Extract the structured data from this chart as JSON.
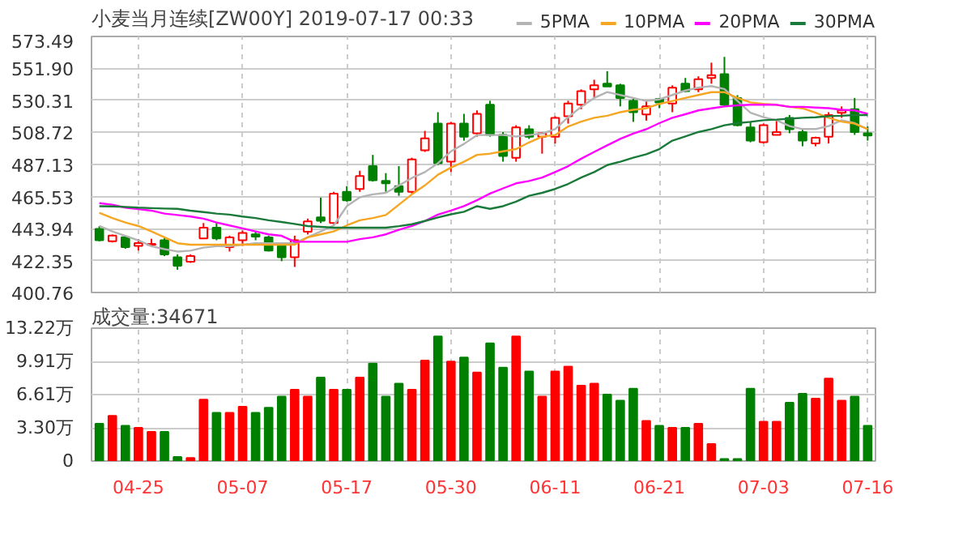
{
  "chart_data": [
    {
      "type": "candlestick",
      "title": "小麦当月连续[ZW00Y] 2019-07-17 00:33",
      "categories": [
        null,
        null,
        null,
        null,
        null,
        null,
        null,
        null,
        null,
        null,
        null,
        null,
        null,
        null,
        null,
        null,
        null,
        null,
        null,
        null,
        null,
        null,
        null,
        null,
        null,
        null,
        null,
        null,
        null,
        null,
        null,
        null,
        null,
        null,
        null,
        null,
        null,
        null,
        null,
        null,
        null,
        null,
        null,
        null,
        null,
        null,
        null,
        null,
        null,
        null,
        null,
        null,
        null,
        null,
        null,
        null,
        null,
        null,
        null,
        null
      ],
      "ohlc": [
        [
          443.7,
          445.6,
          435.3,
          436.0
        ],
        [
          435.3,
          439.9,
          434.5,
          439.1
        ],
        [
          438.0,
          439.1,
          430.3,
          431.4
        ],
        [
          432.2,
          436.8,
          429.1,
          434.1
        ],
        [
          432.9,
          437.0,
          432.0,
          433.6
        ],
        [
          436.0,
          437.9,
          425.3,
          426.5
        ],
        [
          424.5,
          426.5,
          416.1,
          418.8
        ],
        [
          421.5,
          426.5,
          420.7,
          425.3
        ],
        [
          437.2,
          447.6,
          436.8,
          444.5
        ],
        [
          444.5,
          447.6,
          436.0,
          437.2
        ],
        [
          431.4,
          439.1,
          428.4,
          437.9
        ],
        [
          436.0,
          442.6,
          432.2,
          441.0
        ],
        [
          440.0,
          441.8,
          436.0,
          438.5
        ],
        [
          437.9,
          439.1,
          428.4,
          429.1
        ],
        [
          432.2,
          434.1,
          421.9,
          424.5
        ],
        [
          424.5,
          439.1,
          418.0,
          436.0
        ],
        [
          441.8,
          450.6,
          439.9,
          448.7
        ],
        [
          451.4,
          464.8,
          447.6,
          449.1
        ],
        [
          447.6,
          468.7,
          446.8,
          467.5
        ],
        [
          468.7,
          472.5,
          462.1,
          462.9
        ],
        [
          470.6,
          482.9,
          468.7,
          479.4
        ],
        [
          486.0,
          493.6,
          475.6,
          476.4
        ],
        [
          476.0,
          481.3,
          468.7,
          474.4
        ],
        [
          472.5,
          486.0,
          466.0,
          468.7
        ],
        [
          468.7,
          491.7,
          467.5,
          490.6
        ],
        [
          496.7,
          509.8,
          495.6,
          504.7
        ],
        [
          514.7,
          522.4,
          486.7,
          487.9
        ],
        [
          489.0,
          515.9,
          482.1,
          514.7
        ],
        [
          514.7,
          521.3,
          503.2,
          505.9
        ],
        [
          508.2,
          523.6,
          505.9,
          521.3
        ],
        [
          527.4,
          530.1,
          505.9,
          507.1
        ],
        [
          507.1,
          509.0,
          489.0,
          492.9
        ],
        [
          491.7,
          513.6,
          489.0,
          512.1
        ],
        [
          510.9,
          513.6,
          504.4,
          505.9
        ],
        [
          505.9,
          509.0,
          494.4,
          508.2
        ],
        [
          505.9,
          519.7,
          501.3,
          518.6
        ],
        [
          519.7,
          530.1,
          514.7,
          528.2
        ],
        [
          527.4,
          537.8,
          524.4,
          536.6
        ],
        [
          537.8,
          544.3,
          532.0,
          540.5
        ],
        [
          541.6,
          550.1,
          539.7,
          539.7
        ],
        [
          540.5,
          541.6,
          526.3,
          532.0
        ],
        [
          530.1,
          532.0,
          515.9,
          522.4
        ],
        [
          520.9,
          530.1,
          516.7,
          526.3
        ],
        [
          531.3,
          532.0,
          525.1,
          529.0
        ],
        [
          528.2,
          540.5,
          522.4,
          538.9
        ],
        [
          541.6,
          545.5,
          535.9,
          536.6
        ],
        [
          537.8,
          546.6,
          535.9,
          544.7
        ],
        [
          545.5,
          555.8,
          541.6,
          547.4
        ],
        [
          548.1,
          559.7,
          526.3,
          527.4
        ],
        [
          532.0,
          533.9,
          512.8,
          513.6
        ],
        [
          512.1,
          515.9,
          502.1,
          503.2
        ],
        [
          502.1,
          514.7,
          501.3,
          513.6
        ],
        [
          507.1,
          516.7,
          507.1,
          509.0
        ],
        [
          518.6,
          520.5,
          508.2,
          510.9
        ],
        [
          509.0,
          510.9,
          499.4,
          503.2
        ],
        [
          501.3,
          505.9,
          499.4,
          505.1
        ],
        [
          505.9,
          522.4,
          501.3,
          520.5
        ],
        [
          522.0,
          526.3,
          518.6,
          523.6
        ],
        [
          524.4,
          532.0,
          507.1,
          509.0
        ],
        [
          508.2,
          512.8,
          503.2,
          506.7
        ]
      ],
      "colors": [
        "#008000",
        "#ff0000",
        "#008000",
        "#ff0000",
        "#ff0000",
        "#008000",
        "#008000",
        "#ff0000",
        "#ff0000",
        "#008000",
        "#ff0000",
        "#ff0000",
        "#008000",
        "#008000",
        "#008000",
        "#ff0000",
        "#ff0000",
        "#008000",
        "#ff0000",
        "#008000",
        "#ff0000",
        "#008000",
        "#008000",
        "#008000",
        "#ff0000",
        "#ff0000",
        "#008000",
        "#ff0000",
        "#008000",
        "#ff0000",
        "#008000",
        "#008000",
        "#ff0000",
        "#008000",
        "#ff0000",
        "#ff0000",
        "#ff0000",
        "#ff0000",
        "#ff0000",
        "#008000",
        "#008000",
        "#008000",
        "#ff0000",
        "#008000",
        "#ff0000",
        "#008000",
        "#ff0000",
        "#ff0000",
        "#008000",
        "#008000",
        "#008000",
        "#ff0000",
        "#ff0000",
        "#008000",
        "#008000",
        "#ff0000",
        "#ff0000",
        "#ff0000",
        "#008000",
        "#008000"
      ],
      "series": [
        {
          "name": "5PMA",
          "type": "line",
          "color": "#b4b4b4",
          "values": [
            445.6,
            442,
            439,
            436,
            432,
            430,
            428.4,
            429,
            431,
            432,
            432,
            433,
            434,
            434,
            434,
            434,
            438,
            442,
            446,
            459,
            465,
            467,
            468,
            473,
            478,
            482,
            488,
            496,
            501,
            507,
            507,
            507,
            506,
            507,
            508,
            511,
            519,
            526,
            532,
            536,
            534,
            532,
            530,
            531,
            534,
            537,
            539,
            540,
            538,
            530,
            522,
            519,
            517,
            513,
            511,
            511,
            513,
            517,
            515,
            511
          ]
        },
        {
          "name": "10PMA",
          "type": "line",
          "color": "#f5a623",
          "values": [
            454.5,
            451,
            448,
            445.6,
            442,
            438,
            434,
            433,
            433,
            433,
            433,
            433,
            433,
            433,
            433,
            433,
            438,
            440,
            442,
            446,
            449.5,
            451,
            453,
            460,
            467,
            473,
            480.2,
            485,
            489,
            493.6,
            494.4,
            496,
            497.5,
            502,
            505.9,
            507,
            512.8,
            516,
            518.6,
            520,
            522.4,
            524,
            525,
            528,
            530,
            532,
            534,
            535.9,
            535.9,
            532,
            529,
            528,
            527.4,
            526,
            525,
            522,
            518.6,
            516,
            514.7,
            510.9
          ]
        },
        {
          "name": "20PMA",
          "type": "line",
          "color": "#ff00ff",
          "values": [
            461,
            460,
            458,
            457,
            456,
            454,
            453,
            452,
            450.6,
            448,
            446,
            444,
            442,
            440,
            439,
            435,
            435,
            435,
            435,
            435,
            436.8,
            438,
            440,
            443,
            445.6,
            449,
            453.3,
            456,
            459,
            463,
            467.5,
            471,
            474.4,
            476,
            478.3,
            482,
            486,
            491,
            495.6,
            500,
            504.4,
            508,
            510.9,
            515,
            518.6,
            521,
            523.6,
            525,
            526.3,
            527,
            527.4,
            527.4,
            527.4,
            526,
            526,
            525.5,
            525.1,
            524,
            523.6,
            521.3
          ]
        },
        {
          "name": "30PMA",
          "type": "line",
          "color": "#1a7a3a",
          "values": [
            459,
            458.8,
            458.5,
            458,
            457.7,
            457.4,
            457.2,
            456,
            455,
            454,
            453.3,
            452,
            451,
            449.5,
            448.3,
            447,
            445.6,
            445,
            444.5,
            444.5,
            444.5,
            444.5,
            444.5,
            445.5,
            446.8,
            449,
            451.4,
            453.5,
            455.2,
            459,
            457.2,
            459,
            462,
            466,
            468,
            470.6,
            474,
            478.3,
            482,
            486.7,
            489,
            491.7,
            494,
            497.5,
            503.2,
            506,
            509,
            511,
            513.6,
            515,
            515.9,
            517,
            517.4,
            518,
            518.6,
            519,
            519.7,
            520,
            520.5,
            520.5
          ]
        }
      ],
      "ylim": [
        400.76,
        573.49
      ],
      "yticks": [
        400.76,
        422.35,
        443.94,
        465.53,
        487.13,
        508.72,
        530.31,
        {
          "value": 551.9,
          "label": "551.90"
        },
        573.49
      ],
      "grid": true,
      "legend": "top right",
      "tick_labels": "y"
    },
    {
      "type": "bar",
      "title": "成交量:34671",
      "categories": [
        null,
        null,
        null,
        "04-25",
        null,
        null,
        null,
        null,
        null,
        null,
        null,
        "05-07",
        null,
        null,
        null,
        null,
        null,
        null,
        null,
        "05-17",
        null,
        null,
        null,
        null,
        null,
        null,
        null,
        "05-30",
        null,
        null,
        null,
        null,
        null,
        null,
        null,
        "06-11",
        null,
        null,
        null,
        null,
        null,
        null,
        null,
        "06-21",
        null,
        null,
        null,
        null,
        null,
        null,
        null,
        "07-03",
        null,
        null,
        null,
        null,
        null,
        null,
        null,
        "07-16"
      ],
      "values": [
        3.7,
        4.5,
        3.5,
        3.3,
        2.9,
        2.9,
        0.4,
        0.3,
        6.1,
        4.8,
        4.8,
        5.4,
        4.8,
        5.3,
        6.4,
        7.1,
        6.4,
        8.3,
        7.1,
        7.1,
        8.3,
        9.7,
        6.4,
        7.7,
        7.1,
        10.0,
        12.4,
        9.9,
        10.3,
        8.8,
        11.7,
        9.3,
        12.4,
        8.9,
        6.4,
        8.9,
        9.4,
        7.5,
        7.7,
        6.6,
        6.0,
        7.2,
        4.0,
        3.5,
        3.3,
        3.3,
        3.7,
        1.7,
        0.2,
        0.2,
        7.2,
        3.9,
        3.9,
        5.8,
        6.7,
        6.2,
        8.2,
        6.0,
        6.4,
        3.5
      ],
      "colors": [
        "#008000",
        "#ff0000",
        "#008000",
        "#ff0000",
        "#ff0000",
        "#008000",
        "#008000",
        "#ff0000",
        "#ff0000",
        "#008000",
        "#ff0000",
        "#ff0000",
        "#008000",
        "#008000",
        "#008000",
        "#ff0000",
        "#ff0000",
        "#008000",
        "#ff0000",
        "#008000",
        "#ff0000",
        "#008000",
        "#008000",
        "#008000",
        "#ff0000",
        "#ff0000",
        "#008000",
        "#ff0000",
        "#008000",
        "#ff0000",
        "#008000",
        "#008000",
        "#ff0000",
        "#008000",
        "#ff0000",
        "#ff0000",
        "#ff0000",
        "#ff0000",
        "#ff0000",
        "#008000",
        "#008000",
        "#008000",
        "#ff0000",
        "#008000",
        "#ff0000",
        "#008000",
        "#ff0000",
        "#ff0000",
        "#008000",
        "#008000",
        "#008000",
        "#ff0000",
        "#ff0000",
        "#008000",
        "#008000",
        "#ff0000",
        "#ff0000",
        "#ff0000",
        "#008000",
        "#008000"
      ],
      "ylim": [
        0,
        13.22
      ],
      "yticks": [
        0,
        {
          "value": 3.3,
          "label": "3.30万"
        },
        {
          "value": 6.61,
          "label": "6.61万"
        },
        {
          "value": 9.91,
          "label": "9.91万"
        },
        {
          "value": 13.22,
          "label": "13.22万"
        }
      ],
      "grid": true
    }
  ]
}
